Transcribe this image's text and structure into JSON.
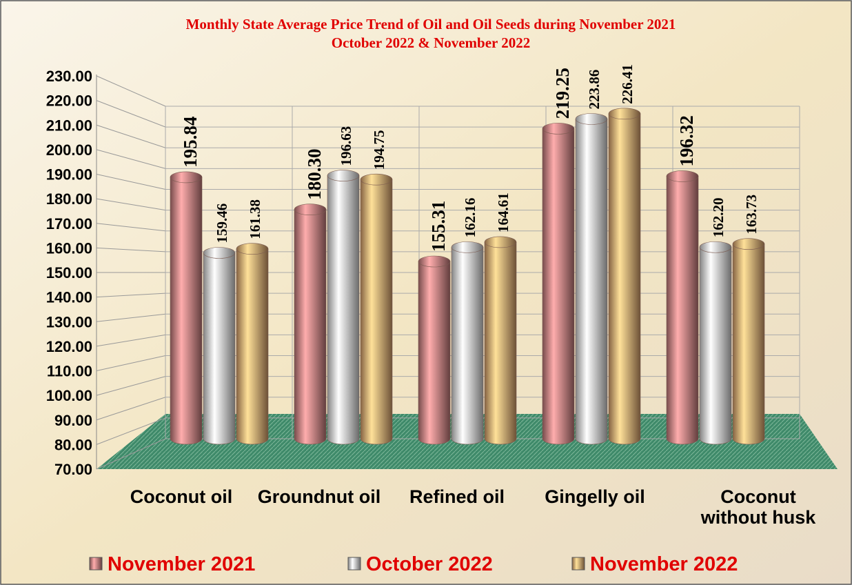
{
  "chart_data": {
    "type": "bar",
    "title": [
      "Monthly State Average Price Trend of Oil and Oil Seeds during  November 2021",
      "October 2022  &  November 2022"
    ],
    "categories": [
      "Coconut oil",
      "Groundnut oil",
      "Refined oil",
      "Gingelly oil",
      "Coconut without husk"
    ],
    "series": [
      {
        "name": "November 2021",
        "color": "#d98a8a",
        "values": [
          195.84,
          180.3,
          155.31,
          219.25,
          196.32
        ],
        "value_labels": [
          "195.84",
          "180.30",
          "155.31",
          "219.25",
          "196.32"
        ]
      },
      {
        "name": "October 2022",
        "color": "#eeeeee",
        "values": [
          159.46,
          196.63,
          162.16,
          223.86,
          162.2
        ],
        "value_labels": [
          "159.46",
          "196.63",
          "162.16",
          "223.86",
          "162.20"
        ]
      },
      {
        "name": "November 2022",
        "color": "#f2b47a",
        "values": [
          161.38,
          194.75,
          164.61,
          226.41,
          163.73
        ],
        "value_labels": [
          "161.38",
          "194.75",
          "164.61",
          "226.41",
          "163.73"
        ]
      }
    ],
    "ylim": [
      70,
      230
    ],
    "yticks": [
      {
        "value": 70,
        "label": "70.00"
      },
      {
        "value": 80,
        "label": "80.00"
      },
      {
        "value": 90,
        "label": "90.00"
      },
      {
        "value": 100,
        "label": "100.00"
      },
      {
        "value": 110,
        "label": "110.00"
      },
      {
        "value": 120,
        "label": "120.00"
      },
      {
        "value": 130,
        "label": "130.00"
      },
      {
        "value": 140,
        "label": "140.00"
      },
      {
        "value": 150,
        "label": "150.00"
      },
      {
        "value": 160,
        "label": "160.00"
      },
      {
        "value": 170,
        "label": "170.00"
      },
      {
        "value": 180,
        "label": "180.00"
      },
      {
        "value": 190,
        "label": "190.00"
      },
      {
        "value": 200,
        "label": "200.00"
      },
      {
        "value": 210,
        "label": "210.00"
      },
      {
        "value": 220,
        "label": "220.00"
      },
      {
        "value": 230,
        "label": "230.00"
      }
    ],
    "grid": true,
    "legend": "bottom"
  }
}
